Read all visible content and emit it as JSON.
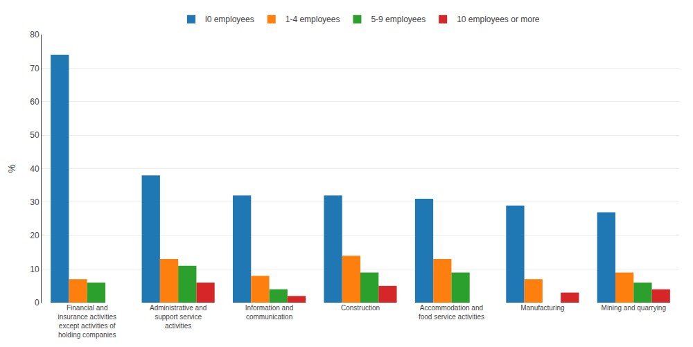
{
  "chart_data": {
    "type": "bar",
    "categories": [
      "Financial and\ninsurance activities\nexcept activities of\nholding companies",
      "Administrative and\nsupport service\nactivities",
      "Information and\ncommunication",
      "Construction",
      "Accommodation and\nfood service activities",
      "Manufacturing",
      "Mining and quarrying"
    ],
    "series": [
      {
        "name": "l0 employees",
        "values": [
          74,
          38,
          32,
          32,
          31,
          29,
          27
        ]
      },
      {
        "name": "1-4 employees",
        "values": [
          7,
          13,
          8,
          14,
          13,
          7,
          9
        ]
      },
      {
        "name": "5-9 employees",
        "values": [
          6,
          11,
          4,
          9,
          9,
          0,
          6
        ]
      },
      {
        "name": "10 employees or more",
        "values": [
          0,
          6,
          2,
          5,
          0,
          3,
          4
        ]
      }
    ],
    "ylabel": "%",
    "ylim": [
      0,
      80
    ],
    "yticks": [
      0,
      10,
      20,
      30,
      40,
      50,
      60,
      70,
      80
    ],
    "grid": true,
    "legend": "top"
  }
}
